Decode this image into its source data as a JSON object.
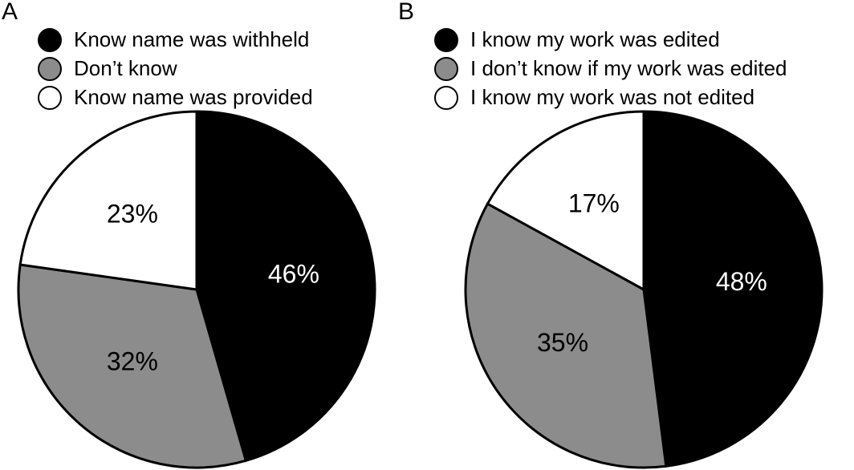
{
  "chart_data": [
    {
      "type": "pie",
      "title": "A",
      "categories": [
        "Know name was withheld",
        "Don’t know",
        "Know name was provided"
      ],
      "values": [
        46,
        32,
        23
      ],
      "value_labels": [
        "46%",
        "32%",
        "23%"
      ],
      "colors": [
        "#000000",
        "#8c8c8c",
        "#ffffff"
      ]
    },
    {
      "type": "pie",
      "title": "B",
      "categories": [
        "I know my work was edited",
        "I don’t know if my work was edited",
        "I know my work was not edited"
      ],
      "values": [
        48,
        35,
        17
      ],
      "value_labels": [
        "48%",
        "35%",
        "17%"
      ],
      "colors": [
        "#000000",
        "#8c8c8c",
        "#ffffff"
      ]
    }
  ]
}
